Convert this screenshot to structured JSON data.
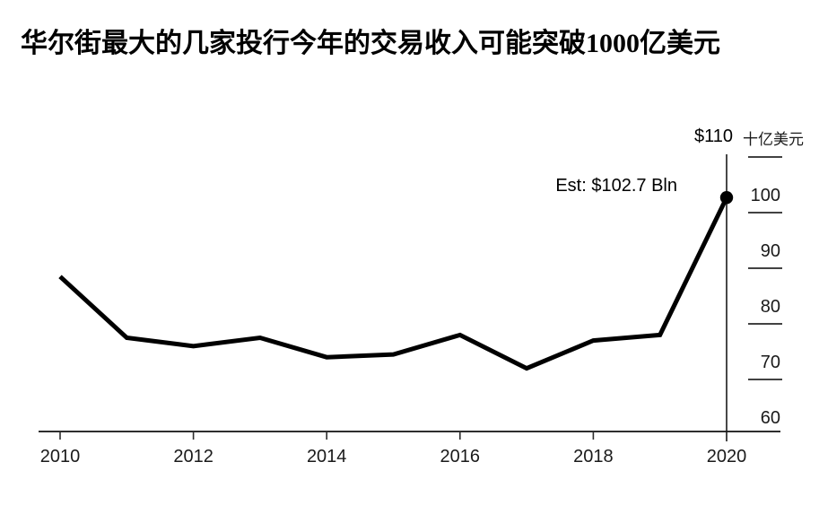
{
  "chart_data": {
    "type": "line",
    "title": "华尔街最大的几家投行今年的交易收入可能突破1000亿美元",
    "unit_label": "十亿美元",
    "y_axis_top_label": "$110",
    "annotation": "Est: $102.7 Bln",
    "x": [
      2010,
      2011,
      2012,
      2013,
      2014,
      2015,
      2016,
      2017,
      2018,
      2019,
      2020
    ],
    "values": [
      88.5,
      77.5,
      76,
      77.5,
      74,
      74.5,
      78,
      72,
      77,
      78,
      102.7
    ],
    "x_tick_labels": [
      "2010",
      "2012",
      "2014",
      "2016",
      "2018",
      "2020"
    ],
    "y_tick_values": [
      110,
      100,
      90,
      80,
      70,
      60
    ],
    "y_tick_labels": [
      "100",
      "90",
      "80",
      "70",
      "60"
    ],
    "ylim": [
      60,
      110
    ],
    "xlim": [
      2010,
      2020
    ],
    "legend": "none",
    "grid": "short right-side tick dashes only",
    "colors": {
      "line": "#000000",
      "axis": "#2e2e2e",
      "tick_dash": "#424242",
      "background": "#ffffff",
      "marker": "#000000"
    },
    "marker": {
      "year": 2020,
      "value": 102.7,
      "style": "filled-circle"
    }
  }
}
